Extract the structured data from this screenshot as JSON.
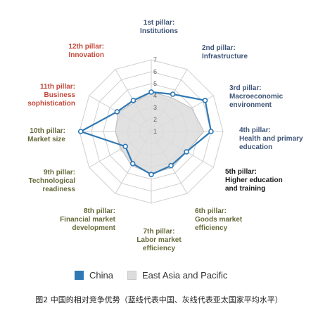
{
  "chart_data": {
    "type": "radar",
    "axes": [
      {
        "lines": [
          "1st pillar:",
          "Institutions"
        ],
        "group": "basic"
      },
      {
        "lines": [
          "2nd pillar:",
          "Infrastructure"
        ],
        "group": "basic"
      },
      {
        "lines": [
          "3rd pillar:",
          "Macroeconomic",
          "environment"
        ],
        "group": "basic"
      },
      {
        "lines": [
          "4th pillar:",
          "Health and primary",
          "education"
        ],
        "group": "basic"
      },
      {
        "lines": [
          "5th pillar:",
          "Higher education",
          "and training"
        ],
        "group": "efficiency"
      },
      {
        "lines": [
          "6th pillar:",
          "Goods market",
          "efficiency"
        ],
        "group": "efficiency"
      },
      {
        "lines": [
          "7th pillar:",
          "Labor market",
          "efficiency"
        ],
        "group": "efficiency"
      },
      {
        "lines": [
          "8th pillar:",
          "Financial market",
          "development"
        ],
        "group": "efficiency"
      },
      {
        "lines": [
          "9th pillar:",
          "Technological",
          "readiness"
        ],
        "group": "efficiency"
      },
      {
        "lines": [
          "10th pillar:",
          "Market size"
        ],
        "group": "efficiency"
      },
      {
        "lines": [
          "11th pillar:",
          "Business",
          "sophistication"
        ],
        "group": "innovation"
      },
      {
        "lines": [
          "12th pillar:",
          "Innovation"
        ],
        "group": "innovation"
      }
    ],
    "ticks": [
      "1",
      "2",
      "3",
      "4",
      "5",
      "6",
      "7"
    ],
    "rlim": [
      1,
      7
    ],
    "series": [
      {
        "name": "China",
        "values": [
          4.3,
          4.6,
          6.2,
          6.0,
          4.4,
          4.3,
          4.6,
          4.1,
          3.5,
          6.9,
          4.3,
          4.0
        ]
      },
      {
        "name": "East Asia and Pacific",
        "values": [
          4.3,
          4.3,
          4.9,
          5.4,
          4.4,
          4.5,
          4.5,
          4.3,
          3.9,
          4.0,
          4.2,
          3.8
        ]
      }
    ]
  },
  "legend": {
    "china": "China",
    "region": "East Asia and Pacific"
  },
  "caption": "图2 中国的相对竞争优势（蓝线代表中国、灰线代表亚太国家平均水平）",
  "colors": {
    "china": "#2e78b5",
    "region_fill": "#dcdcdc",
    "region_stroke": "#bdbdbd",
    "grid": "#cfcfcf",
    "label_basic": "#3f5577",
    "label_efficiency": "#676a3a",
    "label_innovation": "#c4473a",
    "label_highlight": "#1a1a1a"
  }
}
